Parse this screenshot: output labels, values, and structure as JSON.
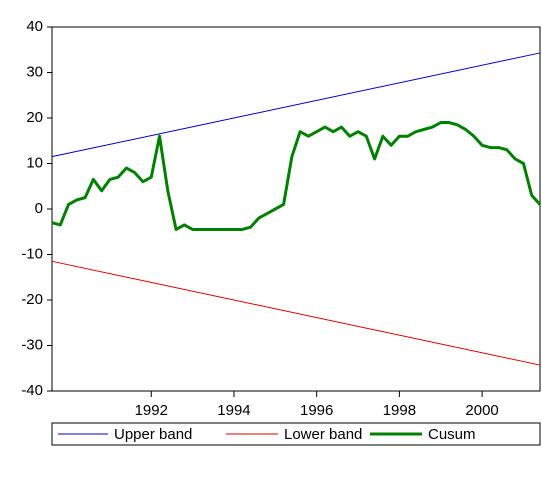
{
  "chart_data": {
    "type": "line",
    "x": [
      1989.6,
      1989.8,
      1990.0,
      1990.2,
      1990.4,
      1990.6,
      1990.8,
      1991.0,
      1991.2,
      1991.4,
      1991.6,
      1991.8,
      1992.0,
      1992.2,
      1992.4,
      1992.6,
      1992.8,
      1993.0,
      1993.2,
      1993.4,
      1993.6,
      1993.8,
      1994.0,
      1994.2,
      1994.4,
      1994.6,
      1994.8,
      1995.0,
      1995.2,
      1995.4,
      1995.6,
      1995.8,
      1996.0,
      1996.2,
      1996.4,
      1996.6,
      1996.8,
      1997.0,
      1997.2,
      1997.4,
      1997.6,
      1997.8,
      1998.0,
      1998.2,
      1998.4,
      1998.6,
      1998.8,
      1999.0,
      1999.2,
      1999.4,
      1999.6,
      1999.8,
      2000.0,
      2000.2,
      2000.4,
      2000.6,
      2000.8,
      2001.0,
      2001.2,
      2001.4
    ],
    "series": [
      {
        "name": "Upper band",
        "color": "#0000cc",
        "width": 1,
        "x": [
          1989.6,
          2001.4
        ],
        "values": [
          11.5,
          34.3
        ]
      },
      {
        "name": "Lower band",
        "color": "#e00000",
        "width": 1,
        "x": [
          1989.6,
          2001.4
        ],
        "values": [
          -11.5,
          -34.3
        ]
      },
      {
        "name": "Cusum",
        "color": "#008000",
        "width": 3,
        "values": [
          -3,
          -3.5,
          1,
          2,
          2.5,
          6.5,
          4,
          6.5,
          7,
          9,
          8,
          6,
          7,
          16,
          4,
          -4.5,
          -3.5,
          -4.5,
          -4.5,
          -4.5,
          -4.5,
          -4.5,
          -4.5,
          -4.5,
          -4,
          -2,
          -1,
          0,
          1,
          11.5,
          17,
          16,
          17,
          18,
          17,
          18,
          16,
          17,
          16,
          11,
          16,
          14,
          16,
          16,
          17,
          17.5,
          18,
          19,
          19,
          18.5,
          17.5,
          16,
          14,
          13.5,
          13.5,
          13,
          11,
          10,
          3,
          1
        ]
      }
    ],
    "xlim": [
      1989.6,
      2001.4
    ],
    "xticks": [
      1992,
      1994,
      1996,
      1998,
      2000
    ],
    "ylim": [
      -40,
      40
    ],
    "yticks": [
      -40,
      -30,
      -20,
      -10,
      0,
      10,
      20,
      30,
      40
    ],
    "grid": false,
    "legend": "bottom"
  }
}
